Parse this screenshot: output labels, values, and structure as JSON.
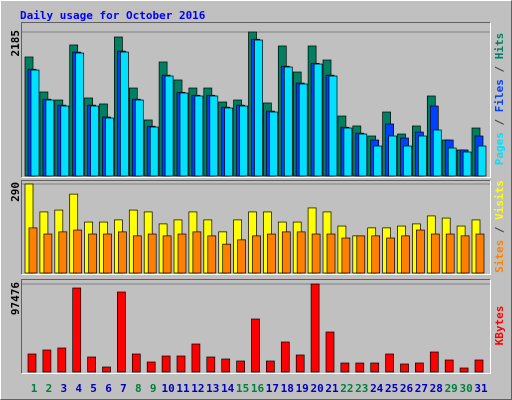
{
  "chart_data": [
    {
      "type": "bar",
      "title": "Daily usage for October 2016",
      "legend_separator": " / ",
      "ylim": [
        0,
        2185
      ],
      "yticks": [
        2185
      ],
      "series": [
        {
          "name": "Hits",
          "color": "#008060",
          "values": [
            1806,
            1275,
            1153,
            1988,
            1184,
            1093,
            2109,
            1335,
            850,
            1730,
            1457,
            1335,
            1335,
            1123,
            1153,
            2185,
            1108,
            1973,
            1578,
            1973,
            1760,
            910,
            759,
            607,
            971,
            637,
            759,
            1214,
            546,
            395,
            728
          ]
        },
        {
          "name": "Files",
          "color": "#0040ff",
          "values": [
            1620,
            1165,
            1075,
            1880,
            1075,
            895,
            1895,
            1165,
            755,
            1530,
            1270,
            1225,
            1225,
            1045,
            1075,
            2075,
            985,
            1665,
            1410,
            1710,
            1530,
            740,
            650,
            546,
            789,
            576,
            667,
            1062,
            546,
            395,
            607
          ]
        },
        {
          "name": "Pages",
          "color": "#00e0ff",
          "values": [
            1608,
            1153,
            1062,
            1866,
            1062,
            880,
            1881,
            1153,
            743,
            1517,
            1259,
            1214,
            1214,
            1032,
            1062,
            2063,
            971,
            1654,
            1396,
            1699,
            1517,
            728,
            637,
            455,
            607,
            455,
            607,
            698,
            425,
            364,
            455
          ]
        }
      ]
    },
    {
      "type": "bar",
      "legend_separator": " / ",
      "ylim": [
        0,
        290
      ],
      "yticks": [
        290
      ],
      "series": [
        {
          "name": "Visits",
          "color": "#ffff00",
          "values": [
            290,
            199,
            205,
            257,
            166,
            166,
            173,
            205,
            199,
            160,
            173,
            199,
            173,
            134,
            173,
            199,
            199,
            166,
            166,
            212,
            199,
            153,
            121,
            147,
            147,
            153,
            160,
            186,
            179,
            153,
            173
          ]
        },
        {
          "name": "Sites",
          "color": "#ff8000",
          "values": [
            147,
            127,
            134,
            140,
            127,
            127,
            134,
            121,
            127,
            121,
            127,
            134,
            121,
            94,
            108,
            121,
            127,
            134,
            134,
            127,
            127,
            114,
            121,
            121,
            114,
            121,
            140,
            127,
            127,
            121,
            127
          ]
        }
      ]
    },
    {
      "type": "bar",
      "categories": [
        "1",
        "2",
        "3",
        "4",
        "5",
        "6",
        "7",
        "8",
        "9",
        "10",
        "11",
        "12",
        "13",
        "14",
        "15",
        "16",
        "17",
        "18",
        "19",
        "20",
        "21",
        "22",
        "23",
        "24",
        "25",
        "26",
        "27",
        "28",
        "29",
        "30",
        "31"
      ],
      "category_colors": [
        "#008040",
        "#008040",
        "#0000c0",
        "#0000c0",
        "#0000c0",
        "#0000c0",
        "#0000c0",
        "#008040",
        "#008040",
        "#0000c0",
        "#0000c0",
        "#0000c0",
        "#0000c0",
        "#0000c0",
        "#008040",
        "#008040",
        "#0000c0",
        "#0000c0",
        "#0000c0",
        "#0000c0",
        "#0000c0",
        "#008040",
        "#008040",
        "#0000c0",
        "#0000c0",
        "#0000c0",
        "#0000c0",
        "#0000c0",
        "#008040",
        "#008040",
        "#0000c0"
      ],
      "ylim": [
        0,
        97476
      ],
      "yticks": [
        97476
      ],
      "series": [
        {
          "name": "KBytes",
          "color": "#ff0000",
          "values": [
            19939,
            24369,
            26585,
            93047,
            16615,
            5538,
            88616,
            19939,
            11077,
            17723,
            17723,
            31016,
            16615,
            14400,
            12185,
            58708,
            12185,
            33231,
            18831,
            97476,
            44308,
            9969,
            9969,
            9969,
            19939,
            8862,
            9969,
            22154,
            13292,
            4431,
            13292
          ]
        }
      ]
    }
  ]
}
